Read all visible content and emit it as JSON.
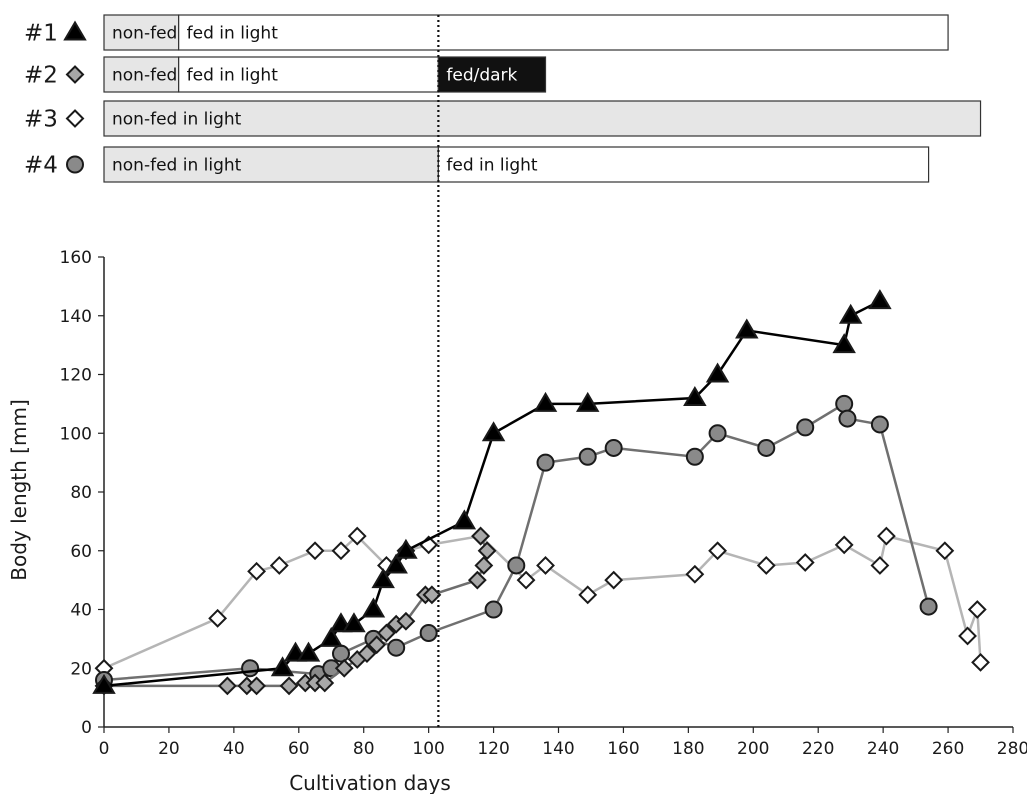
{
  "chart_data": {
    "type": "scatter",
    "xlabel": "Cultivation days",
    "ylabel": "Body length  [mm]",
    "xlim": [
      0,
      280
    ],
    "ylim": [
      0,
      160
    ],
    "xticks": [
      0,
      20,
      40,
      60,
      80,
      100,
      120,
      140,
      160,
      180,
      200,
      220,
      240,
      260,
      280
    ],
    "yticks": [
      0,
      20,
      40,
      60,
      80,
      100,
      120,
      140,
      160
    ],
    "vline_x": 103,
    "legend": [
      {
        "label": "#1",
        "marker": "triangle",
        "color": "#000000"
      },
      {
        "label": "#2",
        "marker": "diamond",
        "color": "#a8a8a8"
      },
      {
        "label": "#3",
        "marker": "diamond",
        "color": "#ffffff"
      },
      {
        "label": "#4",
        "marker": "circle",
        "color": "#8a8a8a"
      }
    ],
    "timeline": [
      {
        "label": "#1",
        "segments": [
          {
            "text": "non-fed",
            "start": 0,
            "end": 23,
            "fill": "#e6e6e6",
            "text_color": "#111111"
          },
          {
            "text": "fed in light",
            "start": 23,
            "end": 260,
            "fill": "#ffffff",
            "text_color": "#111111"
          }
        ]
      },
      {
        "label": "#2",
        "segments": [
          {
            "text": "non-fed",
            "start": 0,
            "end": 23,
            "fill": "#e6e6e6",
            "text_color": "#111111"
          },
          {
            "text": "fed in light",
            "start": 23,
            "end": 103,
            "fill": "#ffffff",
            "text_color": "#111111"
          },
          {
            "text": "fed/dark",
            "start": 103,
            "end": 136,
            "fill": "#111111",
            "text_color": "#ffffff"
          }
        ]
      },
      {
        "label": "#3",
        "segments": [
          {
            "text": "non-fed in light",
            "start": 0,
            "end": 270,
            "fill": "#e6e6e6",
            "text_color": "#111111"
          }
        ]
      },
      {
        "label": "#4",
        "segments": [
          {
            "text": "non-fed in light",
            "start": 0,
            "end": 103,
            "fill": "#e6e6e6",
            "text_color": "#111111"
          },
          {
            "text": "fed in light",
            "start": 103,
            "end": 254,
            "fill": "#ffffff",
            "text_color": "#111111"
          }
        ]
      }
    ],
    "series": [
      {
        "name": "#1",
        "marker": "triangle",
        "fill": "#000000",
        "line": "#000000",
        "points": [
          [
            0,
            14
          ],
          [
            55,
            20
          ],
          [
            59,
            25
          ],
          [
            63,
            25
          ],
          [
            70,
            30
          ],
          [
            73,
            35
          ],
          [
            77,
            35
          ],
          [
            83,
            40
          ],
          [
            86,
            50
          ],
          [
            90,
            55
          ],
          [
            93,
            60
          ],
          [
            111,
            70
          ],
          [
            120,
            100
          ],
          [
            136,
            110
          ],
          [
            149,
            110
          ],
          [
            182,
            112
          ],
          [
            189,
            120
          ],
          [
            198,
            135
          ],
          [
            228,
            130
          ],
          [
            230,
            140
          ],
          [
            239,
            145
          ]
        ]
      },
      {
        "name": "#2",
        "marker": "diamond",
        "fill": "#a8a8a8",
        "line": "#6e6e6e",
        "points": [
          [
            0,
            14
          ],
          [
            38,
            14
          ],
          [
            44,
            14
          ],
          [
            47,
            14
          ],
          [
            57,
            14
          ],
          [
            62,
            15
          ],
          [
            65,
            15
          ],
          [
            68,
            15
          ],
          [
            74,
            20
          ],
          [
            78,
            23
          ],
          [
            81,
            25
          ],
          [
            84,
            28
          ],
          [
            87,
            32
          ],
          [
            90,
            35
          ],
          [
            93,
            36
          ],
          [
            99,
            45
          ],
          [
            101,
            45
          ],
          [
            115,
            50
          ],
          [
            117,
            55
          ],
          [
            118,
            60
          ],
          [
            116,
            65
          ]
        ]
      },
      {
        "name": "#3",
        "marker": "diamond",
        "fill": "#ffffff",
        "line": "#b5b5b5",
        "points": [
          [
            0,
            20
          ],
          [
            35,
            37
          ],
          [
            47,
            53
          ],
          [
            54,
            55
          ],
          [
            65,
            60
          ],
          [
            73,
            60
          ],
          [
            78,
            65
          ],
          [
            87,
            55
          ],
          [
            93,
            60
          ],
          [
            100,
            62
          ],
          [
            116,
            65
          ],
          [
            130,
            50
          ],
          [
            136,
            55
          ],
          [
            149,
            45
          ],
          [
            157,
            50
          ],
          [
            182,
            52
          ],
          [
            189,
            60
          ],
          [
            204,
            55
          ],
          [
            216,
            56
          ],
          [
            228,
            62
          ],
          [
            239,
            55
          ],
          [
            241,
            65
          ],
          [
            259,
            60
          ],
          [
            266,
            31
          ],
          [
            269,
            40
          ],
          [
            270,
            22
          ]
        ]
      },
      {
        "name": "#4",
        "marker": "circle",
        "fill": "#8a8a8a",
        "line": "#707070",
        "points": [
          [
            0,
            16
          ],
          [
            45,
            20
          ],
          [
            66,
            18
          ],
          [
            70,
            20
          ],
          [
            73,
            25
          ],
          [
            83,
            30
          ],
          [
            90,
            27
          ],
          [
            100,
            32
          ],
          [
            120,
            40
          ],
          [
            127,
            55
          ],
          [
            136,
            90
          ],
          [
            149,
            92
          ],
          [
            157,
            95
          ],
          [
            182,
            92
          ],
          [
            189,
            100
          ],
          [
            204,
            95
          ],
          [
            216,
            102
          ],
          [
            228,
            110
          ],
          [
            229,
            105
          ],
          [
            239,
            103
          ],
          [
            254,
            41
          ]
        ]
      }
    ]
  }
}
